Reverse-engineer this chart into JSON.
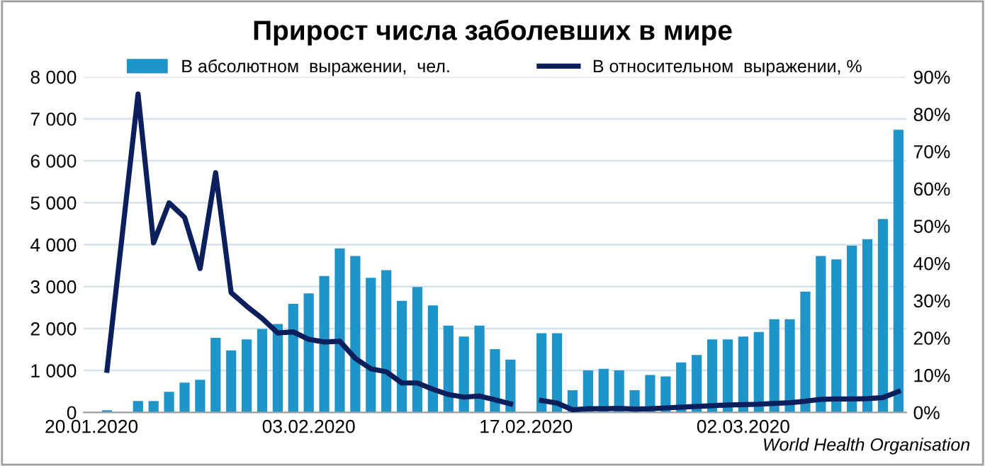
{
  "chart_data": {
    "type": "bar",
    "title": "Прирост числа заболевших в мире",
    "categories": [
      "20.01.2020",
      null,
      null,
      null,
      null,
      null,
      null,
      null,
      null,
      null,
      null,
      null,
      null,
      null,
      "03.02.2020",
      null,
      null,
      null,
      null,
      null,
      null,
      null,
      null,
      null,
      null,
      null,
      null,
      null,
      "17.02.2020",
      null,
      null,
      null,
      null,
      null,
      null,
      null,
      null,
      null,
      null,
      null,
      null,
      null,
      "02.03.2020",
      null,
      null,
      null,
      null,
      null,
      null,
      null,
      null,
      null,
      null
    ],
    "series": [
      {
        "name": "В абсолютном  выражении,  чел.",
        "color": "#1f94c8",
        "values": [
          null,
          50,
          null,
          270,
          270,
          490,
          710,
          780,
          1780,
          1480,
          1740,
          1990,
          2110,
          2590,
          2840,
          3250,
          3910,
          3730,
          3210,
          3390,
          2660,
          2990,
          2550,
          2070,
          1810,
          2070,
          1510,
          1260,
          null,
          1890,
          1890,
          530,
          1000,
          1040,
          1000,
          530,
          890,
          860,
          1190,
          1370,
          1740,
          1740,
          1810,
          1920,
          2220,
          2220,
          2880,
          3730,
          3650,
          3980,
          4130,
          4610,
          6740
        ]
      },
      {
        "name": "В относительном  выражении, %",
        "type": "line",
        "axis": "y2",
        "color": "#0a1f5c",
        "values": [
          null,
          11.3,
          48.3,
          85.4,
          45.5,
          56.2,
          52.3,
          38.6,
          64.3,
          32.1,
          28.5,
          25.2,
          21.3,
          21.6,
          19.6,
          18.9,
          19.1,
          14.5,
          11.7,
          10.9,
          7.9,
          7.9,
          6.2,
          4.8,
          4.1,
          4.4,
          3.4,
          2.3,
          null,
          3.2,
          2.5,
          0.7,
          1.0,
          1.0,
          1.1,
          0.9,
          1.0,
          1.2,
          1.4,
          1.6,
          1.8,
          2.0,
          2.1,
          2.2,
          2.4,
          2.6,
          3.0,
          3.5,
          3.6,
          3.6,
          3.7,
          4.0,
          5.6
        ]
      }
    ],
    "ylim": [
      0,
      8000
    ],
    "yticks": [
      0,
      {
        "value": 1000,
        "label": "1 000"
      },
      {
        "value": 2000,
        "label": "2 000"
      },
      {
        "value": 3000,
        "label": "3 000"
      },
      {
        "value": 4000,
        "label": "4 000"
      },
      {
        "value": 5000,
        "label": "5 000"
      },
      {
        "value": 6000,
        "label": "6 000"
      },
      {
        "value": 7000,
        "label": "7 000"
      },
      {
        "value": 8000,
        "label": "8 000"
      }
    ],
    "y2lim": [
      0,
      90
    ],
    "y2ticks": [
      {
        "value": 0,
        "label": "0%"
      },
      {
        "value": 10,
        "label": "10%"
      },
      {
        "value": 20,
        "label": "20%"
      },
      {
        "value": 30,
        "label": "30%"
      },
      {
        "value": 40,
        "label": "40%"
      },
      {
        "value": 50,
        "label": "50%"
      },
      {
        "value": 60,
        "label": "60%"
      },
      {
        "value": 70,
        "label": "70%"
      },
      {
        "value": 80,
        "label": "80%"
      },
      {
        "value": 90,
        "label": "90%"
      }
    ],
    "grid": "y",
    "legend": "top",
    "annotations": [
      "World Health Organisation"
    ]
  }
}
